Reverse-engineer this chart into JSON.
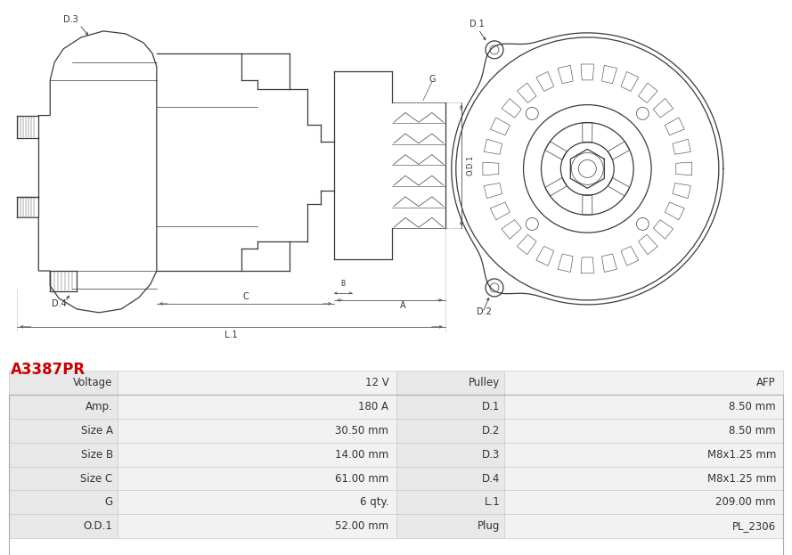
{
  "title": "A3387PR",
  "title_color": "#cc0000",
  "bg_color": "#ffffff",
  "table_row_bg1": "#e8e8e8",
  "table_row_bg2": "#f2f2f2",
  "table_border": "#cccccc",
  "table_data": [
    [
      "Voltage",
      "12 V",
      "Pulley",
      "AFP"
    ],
    [
      "Amp.",
      "180 A",
      "D.1",
      "8.50 mm"
    ],
    [
      "Size A",
      "30.50 mm",
      "D.2",
      "8.50 mm"
    ],
    [
      "Size B",
      "14.00 mm",
      "D.3",
      "M8x1.25 mm"
    ],
    [
      "Size C",
      "61.00 mm",
      "D.4",
      "M8x1.25 mm"
    ],
    [
      "G",
      "6 qty.",
      "L.1",
      "209.00 mm"
    ],
    [
      "O.D.1",
      "52.00 mm",
      "Plug",
      "PL_2306"
    ]
  ],
  "line_color": "#3a3a3a",
  "dim_color": "#555555",
  "label_fontsize": 7.0,
  "table_fontsize": 8.5,
  "fig_width": 8.89,
  "fig_height": 6.23,
  "dpi": 100
}
